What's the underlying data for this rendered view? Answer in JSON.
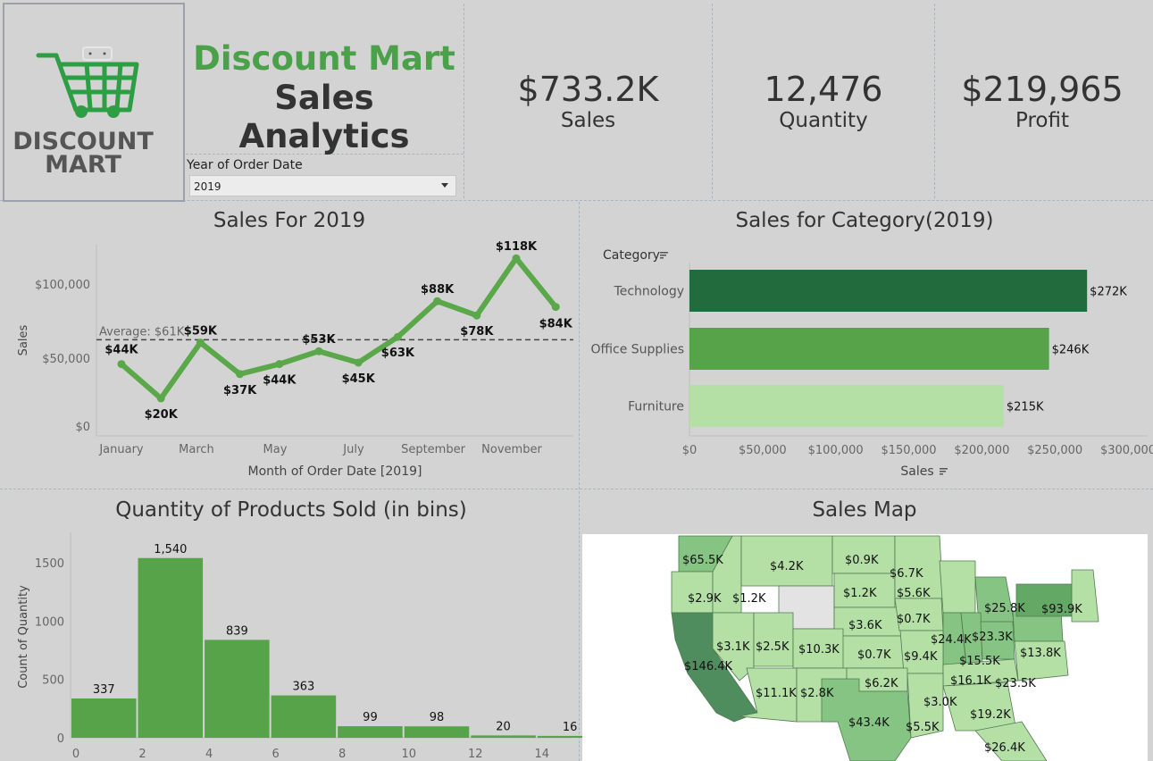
{
  "colors": {
    "brand_green": "#4aa14a",
    "line_green": "#5aa84a",
    "dark_green": "#226b3d",
    "mid_green": "#56a34a",
    "light_green": "#b4e0a6",
    "map_water": "#ffffff"
  },
  "logo": {
    "line1": "DISCOUNT",
    "line2": "MART",
    "icon": "shopping-cart-icon"
  },
  "header": {
    "title": "Discount Mart",
    "subtitle": "Sales Analytics"
  },
  "filter": {
    "label": "Year of Order Date",
    "value": "2019",
    "icon": "chevron-down-icon"
  },
  "kpis": [
    {
      "value": "$733.2K",
      "label": "Sales"
    },
    {
      "value": "12,476",
      "label": "Quantity"
    },
    {
      "value": "$219,965",
      "label": "Profit"
    }
  ],
  "sales_line": {
    "title": "Sales For 2019",
    "ylabel": "Sales",
    "xlabel": "Month of Order Date [2019]",
    "y_ticks": [
      "$100,000",
      "$50,000",
      "$0"
    ],
    "x_ticks": [
      "January",
      "March",
      "May",
      "July",
      "September",
      "November"
    ],
    "average_label": "Average: $61K"
  },
  "category": {
    "title": "Sales for Category(2019)",
    "header": "Category",
    "xlabel": "Sales",
    "x_ticks": [
      "$0",
      "$50,000",
      "$100,000",
      "$150,000",
      "$200,000",
      "$250,000",
      "$300,000"
    ]
  },
  "histogram": {
    "title": "Quantity of Products Sold (in bins)",
    "ylabel": "Count of Quantity",
    "y_ticks": [
      "1500",
      "1000",
      "500",
      "0"
    ],
    "x_ticks": [
      "0",
      "2",
      "4",
      "6",
      "8",
      "10",
      "12",
      "14"
    ]
  },
  "map": {
    "title": "Sales Map",
    "labels": [
      "$65.5K",
      "$4.2K",
      "$0.9K",
      "$6.7K",
      "$2.9K",
      "$1.2K",
      "$1.2K",
      "$5.6K",
      "$3.6K",
      "$0.7K",
      "$25.8K",
      "$93.9K",
      "$3.1K",
      "$2.5K",
      "$10.3K",
      "$0.7K",
      "$24.4K",
      "$23.3K",
      "$146.4K",
      "$9.4K",
      "$15.5K",
      "$13.8K",
      "$6.2K",
      "$16.1K",
      "$23.5K",
      "$11.1K",
      "$2.8K",
      "$3.0K",
      "$19.2K",
      "$43.4K",
      "$5.5K",
      "$26.4K"
    ]
  },
  "chart_data": [
    {
      "type": "line",
      "title": "Sales For 2019",
      "xlabel": "Month of Order Date [2019]",
      "ylabel": "Sales",
      "x": [
        "January",
        "February",
        "March",
        "April",
        "May",
        "June",
        "July",
        "August",
        "September",
        "October",
        "November",
        "December"
      ],
      "values": [
        44000,
        20000,
        59000,
        37000,
        44000,
        53000,
        45000,
        63000,
        88000,
        78000,
        118000,
        84000
      ],
      "point_labels": [
        "$44K",
        "$20K",
        "$59K",
        "$37K",
        "$44K",
        "$53K",
        "$45K",
        "$63K",
        "$88K",
        "$78K",
        "$118K",
        "$84K"
      ],
      "reference_line": {
        "label": "Average: $61K",
        "value": 61000
      },
      "ylim": [
        0,
        120000
      ],
      "grid": false
    },
    {
      "type": "bar",
      "title": "Sales for Category(2019)",
      "xlabel": "Sales",
      "categories": [
        "Technology",
        "Office Supplies",
        "Furniture"
      ],
      "values": [
        272000,
        246000,
        215000
      ],
      "value_labels": [
        "$272K",
        "$246K",
        "$215K"
      ],
      "bar_colors": [
        "#226b3d",
        "#56a34a",
        "#b4e0a6"
      ],
      "xlim": [
        0,
        300000
      ],
      "orientation": "horizontal"
    },
    {
      "type": "bar",
      "title": "Quantity of Products Sold (in bins)",
      "ylabel": "Count of Quantity",
      "bins": [
        0,
        2,
        4,
        6,
        8,
        10,
        12,
        14
      ],
      "values": [
        337,
        1540,
        839,
        363,
        99,
        98,
        20,
        16
      ],
      "value_labels": [
        "337",
        "1,540",
        "839",
        "363",
        "99",
        "98",
        "20",
        "16"
      ],
      "ylim": [
        0,
        1700
      ]
    }
  ]
}
